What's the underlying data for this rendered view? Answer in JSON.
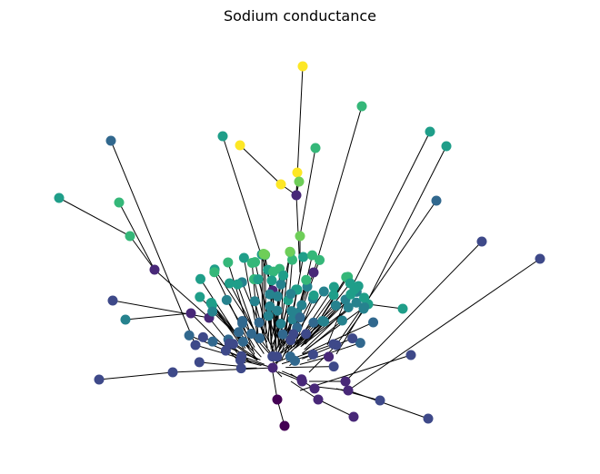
{
  "title": "Sodium conductance"
}
